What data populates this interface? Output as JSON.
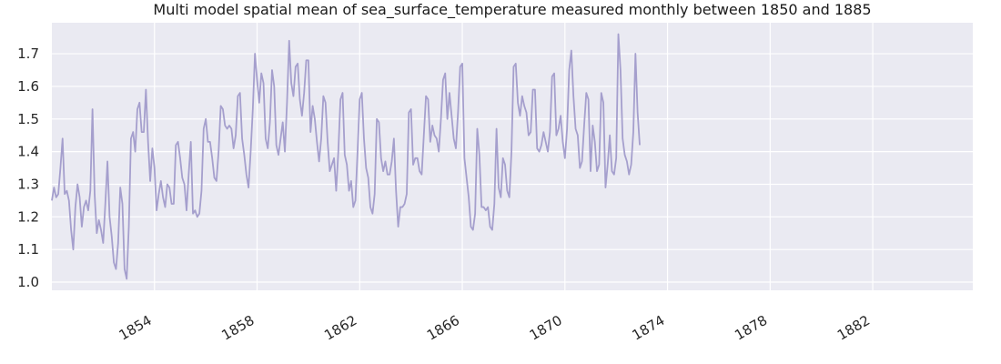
{
  "chart_data": {
    "type": "line",
    "title": "Multi model spatial mean of sea_surface_temperature measured monthly between 1850 and 1885",
    "xlabel": "",
    "ylabel": "",
    "x_ticks": [
      "1854",
      "1858",
      "1862",
      "1866",
      "1870",
      "1874",
      "1878",
      "1882"
    ],
    "x_tick_values": [
      1854,
      1858,
      1862,
      1866,
      1870,
      1874,
      1878,
      1882
    ],
    "y_ticks": [
      "1.0",
      "1.1",
      "1.2",
      "1.3",
      "1.4",
      "1.5",
      "1.6",
      "1.7"
    ],
    "y_tick_values": [
      1.0,
      1.1,
      1.2,
      1.3,
      1.4,
      1.5,
      1.6,
      1.7
    ],
    "xlim": [
      1850.0,
      1885.9
    ],
    "ylim": [
      0.975,
      1.795
    ],
    "grid": true,
    "series": [
      {
        "color": "#a59fcd",
        "x_start": 1850.0,
        "x_step_months": 1,
        "values": [
          1.25,
          1.29,
          1.26,
          1.27,
          1.35,
          1.44,
          1.27,
          1.28,
          1.25,
          1.16,
          1.1,
          1.23,
          1.3,
          1.26,
          1.17,
          1.23,
          1.25,
          1.22,
          1.28,
          1.53,
          1.27,
          1.15,
          1.19,
          1.16,
          1.12,
          1.24,
          1.37,
          1.2,
          1.14,
          1.06,
          1.04,
          1.12,
          1.29,
          1.24,
          1.04,
          1.01,
          1.17,
          1.44,
          1.46,
          1.4,
          1.53,
          1.55,
          1.46,
          1.46,
          1.59,
          1.43,
          1.31,
          1.41,
          1.35,
          1.22,
          1.27,
          1.31,
          1.26,
          1.23,
          1.3,
          1.29,
          1.24,
          1.24,
          1.42,
          1.43,
          1.38,
          1.32,
          1.3,
          1.22,
          1.33,
          1.43,
          1.21,
          1.22,
          1.2,
          1.21,
          1.28,
          1.47,
          1.5,
          1.43,
          1.43,
          1.38,
          1.32,
          1.31,
          1.4,
          1.54,
          1.53,
          1.48,
          1.47,
          1.48,
          1.47,
          1.41,
          1.45,
          1.57,
          1.58,
          1.44,
          1.39,
          1.33,
          1.29,
          1.4,
          1.53,
          1.7,
          1.62,
          1.55,
          1.64,
          1.61,
          1.44,
          1.41,
          1.49,
          1.65,
          1.6,
          1.42,
          1.39,
          1.44,
          1.49,
          1.4,
          1.55,
          1.74,
          1.61,
          1.57,
          1.66,
          1.67,
          1.56,
          1.51,
          1.58,
          1.68,
          1.68,
          1.46,
          1.54,
          1.5,
          1.43,
          1.37,
          1.44,
          1.57,
          1.55,
          1.43,
          1.34,
          1.36,
          1.38,
          1.28,
          1.4,
          1.56,
          1.58,
          1.39,
          1.36,
          1.28,
          1.31,
          1.23,
          1.25,
          1.4,
          1.56,
          1.58,
          1.44,
          1.35,
          1.32,
          1.23,
          1.21,
          1.27,
          1.5,
          1.49,
          1.38,
          1.34,
          1.37,
          1.33,
          1.33,
          1.37,
          1.44,
          1.28,
          1.17,
          1.23,
          1.23,
          1.24,
          1.27,
          1.52,
          1.53,
          1.36,
          1.38,
          1.38,
          1.34,
          1.33,
          1.45,
          1.57,
          1.56,
          1.43,
          1.48,
          1.45,
          1.44,
          1.4,
          1.5,
          1.62,
          1.64,
          1.5,
          1.58,
          1.51,
          1.44,
          1.41,
          1.52,
          1.66,
          1.67,
          1.38,
          1.32,
          1.26,
          1.17,
          1.16,
          1.21,
          1.47,
          1.39,
          1.23,
          1.23,
          1.22,
          1.23,
          1.17,
          1.16,
          1.24,
          1.47,
          1.29,
          1.26,
          1.38,
          1.36,
          1.28,
          1.26,
          1.4,
          1.66,
          1.67,
          1.55,
          1.51,
          1.57,
          1.54,
          1.52,
          1.45,
          1.46,
          1.59,
          1.59,
          1.41,
          1.4,
          1.42,
          1.46,
          1.43,
          1.4,
          1.46,
          1.63,
          1.64,
          1.45,
          1.47,
          1.51,
          1.43,
          1.38,
          1.47,
          1.65,
          1.71,
          1.57,
          1.47,
          1.45,
          1.35,
          1.37,
          1.48,
          1.58,
          1.56,
          1.34,
          1.48,
          1.43,
          1.34,
          1.36,
          1.58,
          1.55,
          1.29,
          1.36,
          1.45,
          1.34,
          1.33,
          1.38,
          1.76,
          1.65,
          1.44,
          1.39,
          1.37,
          1.33,
          1.36,
          1.46,
          1.7,
          1.52,
          1.42
        ]
      }
    ]
  }
}
